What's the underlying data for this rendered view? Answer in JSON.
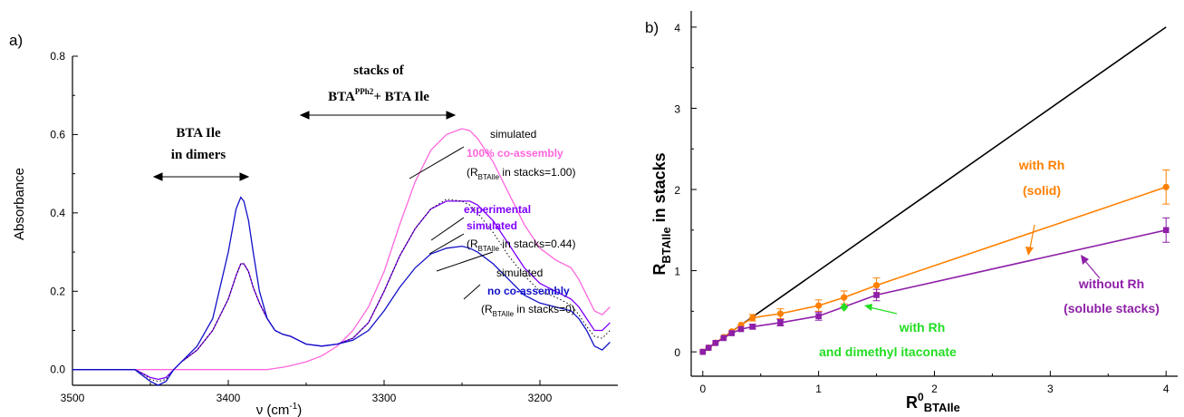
{
  "chart_data": [
    {
      "type": "line",
      "panel_label": "a)",
      "ylabel": "Absorbance",
      "xlabel": "ν (cm⁻¹)",
      "xlabel_main": "ν (cm",
      "xlabel_sup": "-1",
      "xlabel_tail": ")",
      "xlim": [
        3500,
        3150
      ],
      "ylim": [
        -0.04,
        0.8
      ],
      "xticks": [
        3500,
        3400,
        3300,
        3200
      ],
      "xtick_labels": [
        "3500",
        "3400",
        "3300",
        "3200"
      ],
      "yticks": [
        0.0,
        0.2,
        0.4,
        0.6,
        0.8
      ],
      "ytick_labels": [
        "0.0",
        "0.2",
        "0.4",
        "0.6",
        "0.8"
      ],
      "x": [
        3500,
        3480,
        3460,
        3455,
        3450,
        3445,
        3440,
        3435,
        3430,
        3420,
        3410,
        3400,
        3395,
        3392,
        3390,
        3387,
        3384,
        3380,
        3375,
        3370,
        3365,
        3360,
        3355,
        3350,
        3340,
        3330,
        3320,
        3310,
        3300,
        3290,
        3280,
        3270,
        3260,
        3250,
        3245,
        3240,
        3230,
        3220,
        3210,
        3200,
        3190,
        3180,
        3175,
        3170,
        3165,
        3160,
        3155
      ],
      "series": [
        {
          "color": "#ff66dd",
          "values": [
            0.0,
            0.0,
            0.0,
            0.0,
            0.0,
            0.0,
            0.0,
            0.0,
            0.0,
            0.0,
            0.0,
            0.0,
            0.0,
            0.0,
            0.0,
            0.0,
            0.0,
            0.0,
            0.0,
            0.003,
            0.006,
            0.01,
            0.015,
            0.02,
            0.035,
            0.06,
            0.1,
            0.16,
            0.25,
            0.37,
            0.48,
            0.56,
            0.6,
            0.615,
            0.61,
            0.59,
            0.53,
            0.45,
            0.37,
            0.31,
            0.28,
            0.26,
            0.23,
            0.19,
            0.15,
            0.14,
            0.16
          ]
        },
        {
          "color": "#8000ff",
          "values": [
            0.0,
            0.0,
            0.0,
            -0.01,
            -0.02,
            -0.025,
            -0.02,
            0.0,
            0.02,
            0.05,
            0.1,
            0.18,
            0.24,
            0.27,
            0.27,
            0.25,
            0.21,
            0.17,
            0.13,
            0.1,
            0.09,
            0.085,
            0.075,
            0.065,
            0.06,
            0.065,
            0.08,
            0.12,
            0.2,
            0.29,
            0.36,
            0.41,
            0.43,
            0.43,
            0.43,
            0.42,
            0.38,
            0.32,
            0.26,
            0.22,
            0.2,
            0.18,
            0.16,
            0.13,
            0.1,
            0.1,
            0.12
          ]
        },
        {
          "color": "#000000",
          "dashed": true,
          "values": [
            0.0,
            0.0,
            0.0,
            -0.01,
            -0.025,
            -0.03,
            -0.025,
            0.0,
            0.02,
            0.05,
            0.1,
            0.18,
            0.24,
            0.27,
            0.27,
            0.25,
            0.21,
            0.17,
            0.13,
            0.1,
            0.09,
            0.085,
            0.075,
            0.065,
            0.06,
            0.065,
            0.08,
            0.12,
            0.2,
            0.29,
            0.36,
            0.41,
            0.435,
            0.43,
            0.42,
            0.4,
            0.35,
            0.29,
            0.24,
            0.2,
            0.185,
            0.165,
            0.14,
            0.11,
            0.085,
            0.08,
            0.1
          ]
        },
        {
          "color": "#1010c8",
          "values": [
            0.0,
            0.0,
            0.0,
            -0.015,
            -0.03,
            -0.04,
            -0.03,
            0.0,
            0.02,
            0.06,
            0.13,
            0.3,
            0.41,
            0.44,
            0.43,
            0.38,
            0.3,
            0.2,
            0.13,
            0.1,
            0.09,
            0.085,
            0.075,
            0.065,
            0.06,
            0.065,
            0.075,
            0.1,
            0.15,
            0.21,
            0.26,
            0.295,
            0.31,
            0.315,
            0.31,
            0.3,
            0.27,
            0.23,
            0.19,
            0.17,
            0.16,
            0.15,
            0.13,
            0.1,
            0.06,
            0.05,
            0.07
          ]
        }
      ],
      "annotations": [
        {
          "lines": [
            "BTA Ile",
            "in dimers"
          ]
        },
        {
          "lines": [
            "stacks of"
          ],
          "formula": {
            "main": "BTA",
            "sup": "PPh2",
            "tail": "+ BTA Ile"
          }
        },
        {
          "text": "simulated",
          "color": "#000000"
        },
        {
          "text": "100% co-assembly",
          "color": "#ff66dd"
        },
        {
          "pre": "(R",
          "sub": "BTAIle",
          "post": " in stacks=1.00)",
          "color": "#000000"
        },
        {
          "text": "experimental",
          "color": "#8000ff"
        },
        {
          "text": "simulated",
          "color": "#8000ff"
        },
        {
          "pre": "(R",
          "sub": "BTAIle",
          "post": " in stacks=0.44)",
          "color": "#000000"
        },
        {
          "text": "simulated",
          "color": "#000000"
        },
        {
          "text": "no co-assembly",
          "color": "#1010c8"
        },
        {
          "pre": "(R",
          "sub": "BTAIle",
          "post": " in stacks=0)",
          "color": "#000000"
        }
      ]
    },
    {
      "type": "line",
      "panel_label": "b)",
      "ylabel_main": "R",
      "ylabel_sub": "BTAIle",
      "ylabel_tail": " in stacks",
      "xlabel_main": "R",
      "xlabel_sup": "0",
      "xlabel_sub": "BTAIle",
      "xlim": [
        -0.1,
        4.1
      ],
      "ylim": [
        -0.3,
        4.2
      ],
      "xticks": [
        0,
        1,
        2,
        3,
        4
      ],
      "xtick_labels": [
        "0",
        "1",
        "2",
        "3",
        "4"
      ],
      "yticks": [
        0,
        1,
        2,
        3,
        4
      ],
      "ytick_labels": [
        "0",
        "1",
        "2",
        "3",
        "4"
      ],
      "series": [
        {
          "color": "#000000",
          "marker": "none",
          "x": [
            0,
            4
          ],
          "y": [
            0,
            4
          ]
        },
        {
          "color": "#ff8000",
          "marker": "circle",
          "x": [
            0,
            0.05,
            0.11,
            0.18,
            0.25,
            0.33,
            0.43,
            0.67,
            1.0,
            1.22,
            1.5,
            4.0
          ],
          "y": [
            0,
            0.05,
            0.11,
            0.18,
            0.25,
            0.33,
            0.42,
            0.47,
            0.57,
            0.67,
            0.82,
            2.03
          ],
          "err": [
            0,
            0,
            0,
            0,
            0,
            0,
            0.04,
            0.06,
            0.07,
            0.08,
            0.09,
            0.21
          ]
        },
        {
          "color": "#8e1fa8",
          "marker": "square",
          "x": [
            0,
            0.05,
            0.11,
            0.18,
            0.25,
            0.33,
            0.43,
            0.67,
            1.0,
            1.5,
            4.0
          ],
          "y": [
            0,
            0.05,
            0.11,
            0.17,
            0.23,
            0.28,
            0.31,
            0.36,
            0.44,
            0.7,
            1.5
          ],
          "err": [
            0,
            0,
            0,
            0,
            0,
            0,
            0.03,
            0.04,
            0.05,
            0.07,
            0.15
          ]
        },
        {
          "color": "#22dd22",
          "marker": "diamond",
          "x": [
            1.22
          ],
          "y": [
            0.55
          ]
        }
      ],
      "annotations": [
        {
          "lines": [
            "with Rh",
            "(solid)"
          ],
          "color": "#ff8000"
        },
        {
          "lines": [
            "without Rh",
            "(soluble stacks)"
          ],
          "color": "#8e1fa8"
        },
        {
          "lines": [
            "with Rh",
            "and dimethyl itaconate"
          ],
          "color": "#22dd22"
        }
      ]
    }
  ]
}
